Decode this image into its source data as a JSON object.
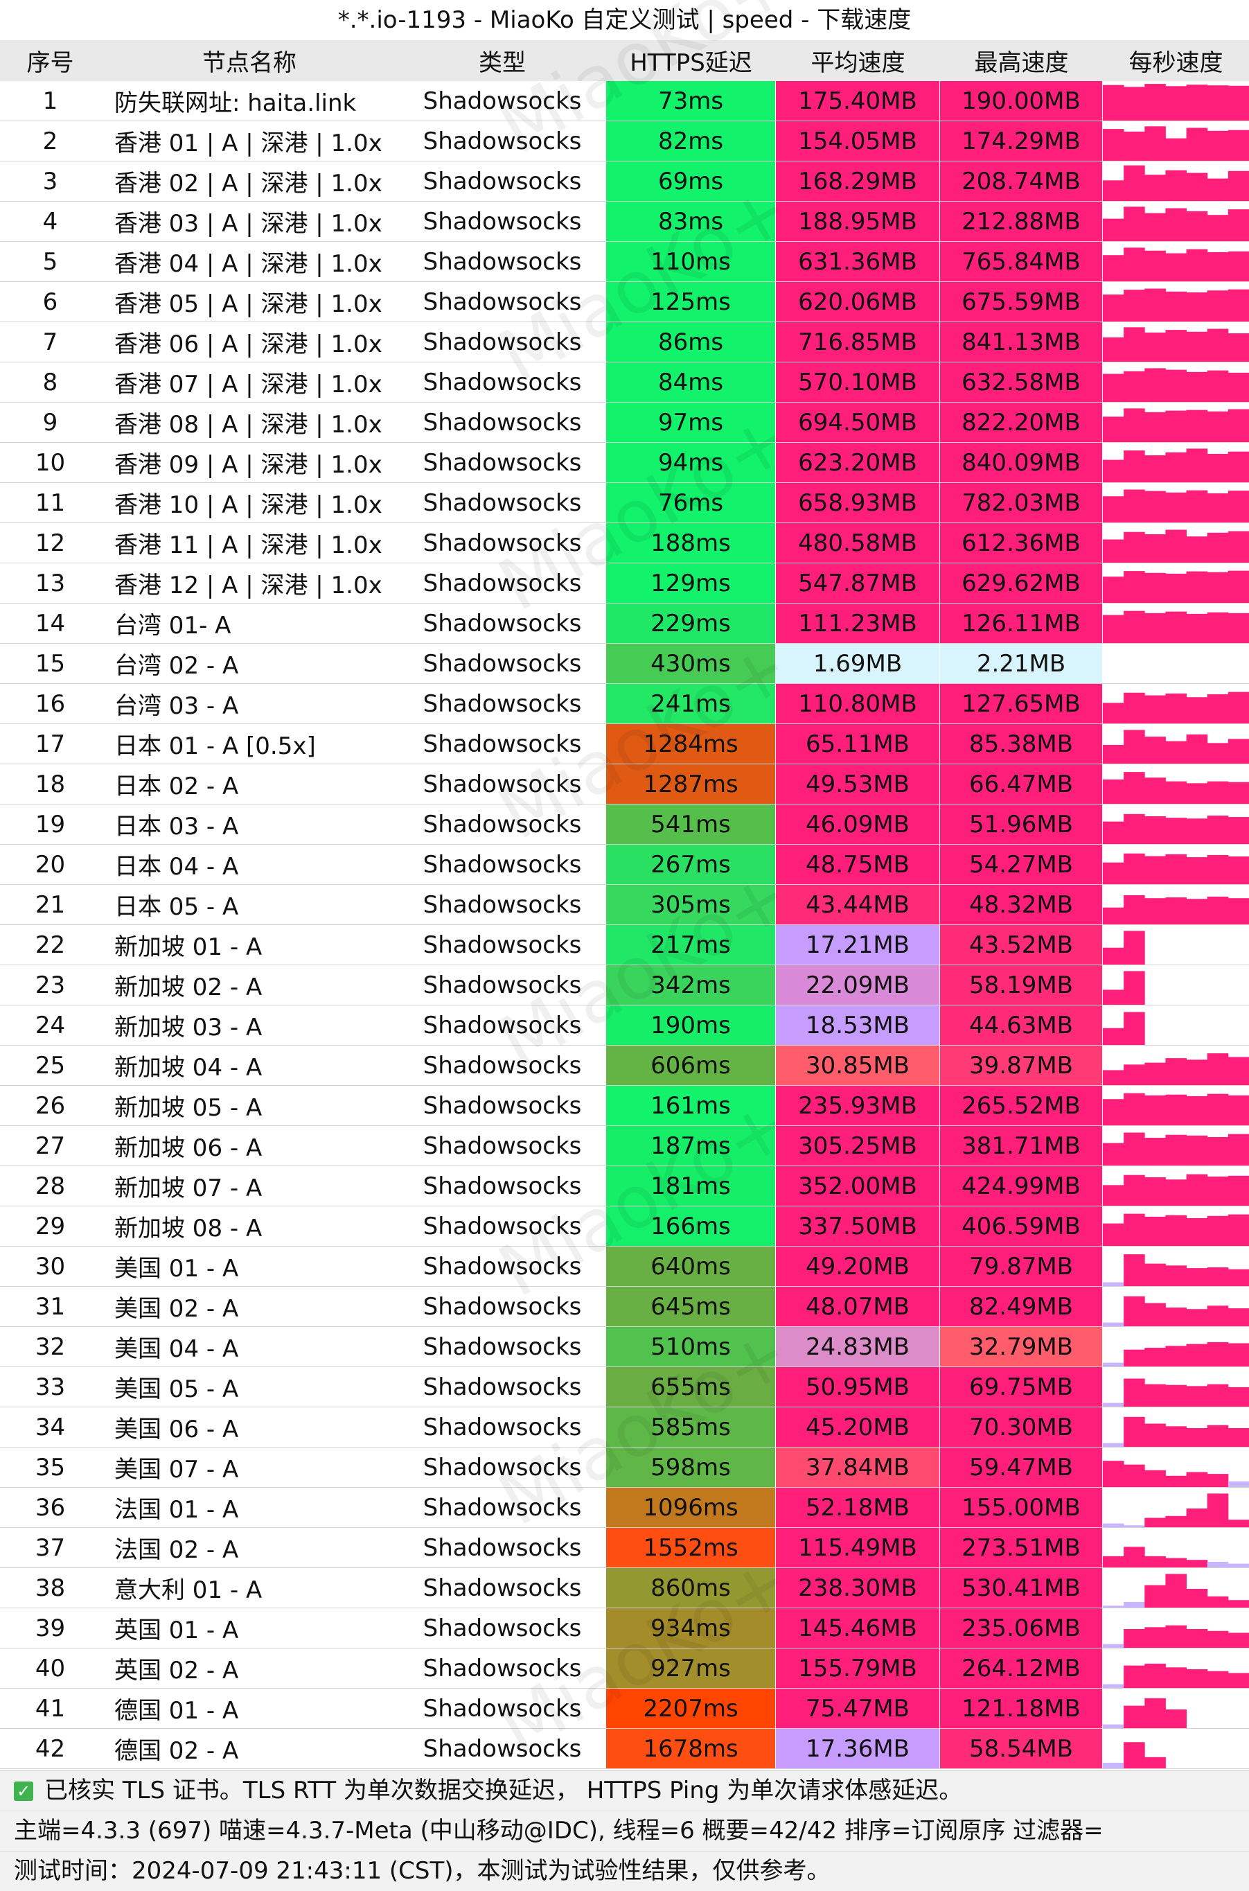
{
  "title": "*.*.io-1193 - MiaoKo 自定义测试 | speed - 下载速度",
  "watermark_text": "MiaoKo+",
  "columns": [
    "序号",
    "节点名称",
    "类型",
    "HTTPS延迟",
    "平均速度",
    "最高速度",
    "每秒速度"
  ],
  "rows": [
    {
      "no": "1",
      "name": "防失联网址: haita.link",
      "type": "Shadowsocks",
      "latency": "73ms",
      "latency_color": "#12f26a",
      "avg": "175.40MB",
      "avg_color": "#ff1f7a",
      "max": "190.00MB",
      "max_color": "#ff1f7a",
      "per_second": [
        0.95,
        0.9,
        0.98,
        0.92,
        0.96,
        0.94,
        0.93
      ]
    },
    {
      "no": "2",
      "name": "香港 01 | A | 深港 | 1.0x",
      "type": "Shadowsocks",
      "latency": "82ms",
      "latency_color": "#12f26a",
      "avg": "154.05MB",
      "avg_color": "#ff1f7a",
      "max": "174.29MB",
      "max_color": "#ff1f7a",
      "per_second": [
        0.85,
        0.78,
        0.92,
        0.6,
        0.88,
        0.8,
        0.82
      ]
    },
    {
      "no": "3",
      "name": "香港 02 | A | 深港 | 1.0x",
      "type": "Shadowsocks",
      "latency": "69ms",
      "latency_color": "#12f26a",
      "avg": "168.29MB",
      "avg_color": "#ff1f7a",
      "max": "208.74MB",
      "max_color": "#ff1f7a",
      "per_second": [
        0.55,
        0.95,
        0.7,
        0.82,
        0.75,
        0.6,
        0.8
      ]
    },
    {
      "no": "4",
      "name": "香港 03 | A | 深港 | 1.0x",
      "type": "Shadowsocks",
      "latency": "83ms",
      "latency_color": "#12f26a",
      "avg": "188.95MB",
      "avg_color": "#ff1f7a",
      "max": "212.88MB",
      "max_color": "#ff1f7a",
      "per_second": [
        0.6,
        0.92,
        0.75,
        0.88,
        0.8,
        0.7,
        0.85
      ]
    },
    {
      "no": "5",
      "name": "香港 04 | A | 深港 | 1.0x",
      "type": "Shadowsocks",
      "latency": "110ms",
      "latency_color": "#12f26a",
      "avg": "631.36MB",
      "avg_color": "#ff1f7a",
      "max": "765.84MB",
      "max_color": "#ff1f7a",
      "per_second": [
        0.7,
        0.9,
        0.82,
        0.75,
        0.86,
        0.78,
        0.8
      ]
    },
    {
      "no": "6",
      "name": "香港 05 | A | 深港 | 1.0x",
      "type": "Shadowsocks",
      "latency": "125ms",
      "latency_color": "#12f26a",
      "avg": "620.06MB",
      "avg_color": "#ff1f7a",
      "max": "675.59MB",
      "max_color": "#ff1f7a",
      "per_second": [
        0.72,
        0.85,
        0.88,
        0.8,
        0.78,
        0.83,
        0.86
      ]
    },
    {
      "no": "7",
      "name": "香港 06 | A | 深港 | 1.0x",
      "type": "Shadowsocks",
      "latency": "86ms",
      "latency_color": "#12f26a",
      "avg": "716.85MB",
      "avg_color": "#ff1f7a",
      "max": "841.13MB",
      "max_color": "#ff1f7a",
      "per_second": [
        0.65,
        0.92,
        0.78,
        0.85,
        0.8,
        0.88,
        0.76
      ]
    },
    {
      "no": "8",
      "name": "香港 07 | A | 深港 | 1.0x",
      "type": "Shadowsocks",
      "latency": "84ms",
      "latency_color": "#12f26a",
      "avg": "570.10MB",
      "avg_color": "#ff1f7a",
      "max": "632.58MB",
      "max_color": "#ff1f7a",
      "per_second": [
        0.75,
        0.82,
        0.9,
        0.86,
        0.8,
        0.84,
        0.78
      ]
    },
    {
      "no": "9",
      "name": "香港 08 | A | 深港 | 1.0x",
      "type": "Shadowsocks",
      "latency": "97ms",
      "latency_color": "#12f26a",
      "avg": "694.50MB",
      "avg_color": "#ff1f7a",
      "max": "822.20MB",
      "max_color": "#ff1f7a",
      "per_second": [
        0.68,
        0.9,
        0.8,
        0.84,
        0.86,
        0.82,
        0.88
      ]
    },
    {
      "no": "10",
      "name": "香港 09 | A | 深港 | 1.0x",
      "type": "Shadowsocks",
      "latency": "94ms",
      "latency_color": "#12f26a",
      "avg": "623.20MB",
      "avg_color": "#ff1f7a",
      "max": "840.09MB",
      "max_color": "#ff1f7a",
      "per_second": [
        0.6,
        0.85,
        0.72,
        0.8,
        0.9,
        0.76,
        0.82
      ]
    },
    {
      "no": "11",
      "name": "香港 10 | A | 深港 | 1.0x",
      "type": "Shadowsocks",
      "latency": "76ms",
      "latency_color": "#12f26a",
      "avg": "658.93MB",
      "avg_color": "#ff1f7a",
      "max": "782.03MB",
      "max_color": "#ff1f7a",
      "per_second": [
        0.7,
        0.88,
        0.84,
        0.8,
        0.86,
        0.78,
        0.85
      ]
    },
    {
      "no": "12",
      "name": "香港 11 | A | 深港 | 1.0x",
      "type": "Shadowsocks",
      "latency": "188ms",
      "latency_color": "#12f26a",
      "avg": "480.58MB",
      "avg_color": "#ff1f7a",
      "max": "612.36MB",
      "max_color": "#ff1f7a",
      "per_second": [
        0.62,
        0.82,
        0.76,
        0.88,
        0.7,
        0.8,
        0.84
      ]
    },
    {
      "no": "13",
      "name": "香港 12 | A | 深港 | 1.0x",
      "type": "Shadowsocks",
      "latency": "129ms",
      "latency_color": "#12f26a",
      "avg": "547.87MB",
      "avg_color": "#ff1f7a",
      "max": "629.62MB",
      "max_color": "#ff1f7a",
      "per_second": [
        0.7,
        0.85,
        0.8,
        0.78,
        0.84,
        0.82,
        0.86
      ]
    },
    {
      "no": "14",
      "name": "台湾 01- A",
      "type": "Shadowsocks",
      "latency": "229ms",
      "latency_color": "#1ee866",
      "avg": "111.23MB",
      "avg_color": "#ff1f7a",
      "max": "126.11MB",
      "max_color": "#ff1f7a",
      "per_second": [
        0.75,
        0.86,
        0.8,
        0.84,
        0.78,
        0.82,
        0.8
      ]
    },
    {
      "no": "15",
      "name": "台湾 02 - A",
      "type": "Shadowsocks",
      "latency": "430ms",
      "latency_color": "#46cc55",
      "avg": "1.69MB",
      "avg_color": "#d8f4fc",
      "max": "2.21MB",
      "max_color": "#d8f4fc",
      "per_second": [
        0,
        0,
        0,
        0,
        0,
        0,
        0
      ]
    },
    {
      "no": "16",
      "name": "台湾 03 - A",
      "type": "Shadowsocks",
      "latency": "241ms",
      "latency_color": "#22e866",
      "avg": "110.80MB",
      "avg_color": "#ff1f7a",
      "max": "127.65MB",
      "max_color": "#ff1f7a",
      "per_second": [
        0.55,
        0.82,
        0.75,
        0.8,
        0.7,
        0.78,
        0.84
      ]
    },
    {
      "no": "17",
      "name": "日本 01 - A [0.5x]",
      "type": "Shadowsocks",
      "latency": "1284ms",
      "latency_color": "#e05a14",
      "avg": "65.11MB",
      "avg_color": "#ff1f7a",
      "max": "85.38MB",
      "max_color": "#ff1f7a",
      "per_second": [
        0.5,
        0.9,
        0.72,
        0.6,
        0.78,
        0.55,
        0.66
      ]
    },
    {
      "no": "18",
      "name": "日本 02 - A",
      "type": "Shadowsocks",
      "latency": "1287ms",
      "latency_color": "#e05a14",
      "avg": "49.53MB",
      "avg_color": "#ff1f7a",
      "max": "66.47MB",
      "max_color": "#ff1f7a",
      "per_second": [
        0.65,
        0.85,
        0.7,
        0.6,
        0.55,
        0.6,
        0.58
      ]
    },
    {
      "no": "19",
      "name": "日本 03 - A",
      "type": "Shadowsocks",
      "latency": "541ms",
      "latency_color": "#56bf4c",
      "avg": "46.09MB",
      "avg_color": "#ff1f7a",
      "max": "51.96MB",
      "max_color": "#ff1f7a",
      "per_second": [
        0.6,
        0.8,
        0.74,
        0.7,
        0.68,
        0.76,
        0.72
      ]
    },
    {
      "no": "20",
      "name": "日本 04 - A",
      "type": "Shadowsocks",
      "latency": "267ms",
      "latency_color": "#2ae062",
      "avg": "48.75MB",
      "avg_color": "#ff1f7a",
      "max": "54.27MB",
      "max_color": "#ff1f7a",
      "per_second": [
        0.58,
        0.82,
        0.75,
        0.8,
        0.72,
        0.78,
        0.74
      ]
    },
    {
      "no": "21",
      "name": "日本 05 - A",
      "type": "Shadowsocks",
      "latency": "305ms",
      "latency_color": "#36d85e",
      "avg": "43.44MB",
      "avg_color": "#ff2a78",
      "max": "48.32MB",
      "max_color": "#ff1f7a",
      "per_second": [
        0.45,
        0.78,
        0.7,
        0.72,
        0.68,
        0.74,
        0.7
      ]
    },
    {
      "no": "22",
      "name": "新加坡 01 - A",
      "type": "Shadowsocks",
      "latency": "217ms",
      "latency_color": "#20e866",
      "avg": "17.21MB",
      "avg_color": "#c79cff",
      "max": "43.52MB",
      "max_color": "#ff2a78",
      "per_second": [
        0.45,
        0.9,
        0,
        0,
        0,
        0,
        0
      ]
    },
    {
      "no": "23",
      "name": "新加坡 02 - A",
      "type": "Shadowsocks",
      "latency": "342ms",
      "latency_color": "#3ad45c",
      "avg": "22.09MB",
      "avg_color": "#d88ad8",
      "max": "58.19MB",
      "max_color": "#ff2a78",
      "per_second": [
        0.4,
        0.9,
        0,
        0,
        0,
        0,
        0
      ]
    },
    {
      "no": "24",
      "name": "新加坡 03 - A",
      "type": "Shadowsocks",
      "latency": "190ms",
      "latency_color": "#16ee68",
      "avg": "18.53MB",
      "avg_color": "#c79cff",
      "max": "44.63MB",
      "max_color": "#ff2a78",
      "per_second": [
        0.45,
        0.88,
        0,
        0,
        0,
        0,
        0
      ]
    },
    {
      "no": "25",
      "name": "新加坡 04 - A",
      "type": "Shadowsocks",
      "latency": "606ms",
      "latency_color": "#64b445",
      "avg": "30.85MB",
      "avg_color": "#ff5c6c",
      "max": "39.87MB",
      "max_color": "#ff3a74",
      "per_second": [
        0.4,
        0.55,
        0.6,
        0.72,
        0.68,
        0.85,
        0.75
      ]
    },
    {
      "no": "26",
      "name": "新加坡 05 - A",
      "type": "Shadowsocks",
      "latency": "161ms",
      "latency_color": "#12f26a",
      "avg": "235.93MB",
      "avg_color": "#ff1f7a",
      "max": "265.52MB",
      "max_color": "#ff1f7a",
      "per_second": [
        0.7,
        0.86,
        0.8,
        0.82,
        0.78,
        0.84,
        0.8
      ]
    },
    {
      "no": "27",
      "name": "新加坡 06 - A",
      "type": "Shadowsocks",
      "latency": "187ms",
      "latency_color": "#16ee68",
      "avg": "305.25MB",
      "avg_color": "#ff1f7a",
      "max": "381.71MB",
      "max_color": "#ff1f7a",
      "per_second": [
        0.6,
        0.88,
        0.74,
        0.82,
        0.8,
        0.76,
        0.84
      ]
    },
    {
      "no": "28",
      "name": "新加坡 07 - A",
      "type": "Shadowsocks",
      "latency": "181ms",
      "latency_color": "#16ee68",
      "avg": "352.00MB",
      "avg_color": "#ff1f7a",
      "max": "424.99MB",
      "max_color": "#ff1f7a",
      "per_second": [
        0.55,
        0.82,
        0.76,
        0.7,
        0.84,
        0.78,
        0.8
      ]
    },
    {
      "no": "29",
      "name": "新加坡 08 - A",
      "type": "Shadowsocks",
      "latency": "166ms",
      "latency_color": "#14f06a",
      "avg": "337.50MB",
      "avg_color": "#ff1f7a",
      "max": "406.59MB",
      "max_color": "#ff1f7a",
      "per_second": [
        0.6,
        0.86,
        0.78,
        0.82,
        0.74,
        0.8,
        0.84
      ]
    },
    {
      "no": "30",
      "name": "美国 01 - A",
      "type": "Shadowsocks",
      "latency": "640ms",
      "latency_color": "#68b044",
      "avg": "49.20MB",
      "avg_color": "#ff1f7a",
      "max": "79.87MB",
      "max_color": "#ff1f7a",
      "per_second": [
        0.1,
        0.85,
        0.6,
        0.55,
        0.48,
        0.5,
        0.45
      ]
    },
    {
      "no": "31",
      "name": "美国 02 - A",
      "type": "Shadowsocks",
      "latency": "645ms",
      "latency_color": "#68b044",
      "avg": "48.07MB",
      "avg_color": "#ff1f7a",
      "max": "82.49MB",
      "max_color": "#ff1f7a",
      "per_second": [
        0.1,
        0.8,
        0.62,
        0.5,
        0.46,
        0.55,
        0.48
      ]
    },
    {
      "no": "32",
      "name": "美国 04 - A",
      "type": "Shadowsocks",
      "latency": "510ms",
      "latency_color": "#52c24e",
      "avg": "24.83MB",
      "avg_color": "#dc8cc8",
      "max": "32.79MB",
      "max_color": "#ff5c6c",
      "per_second": [
        0.1,
        0.45,
        0.5,
        0.55,
        0.6,
        0.65,
        0.62
      ]
    },
    {
      "no": "33",
      "name": "美国 05 - A",
      "type": "Shadowsocks",
      "latency": "655ms",
      "latency_color": "#6aae43",
      "avg": "50.95MB",
      "avg_color": "#ff1f7a",
      "max": "69.75MB",
      "max_color": "#ff1f7a",
      "per_second": [
        0.1,
        0.75,
        0.6,
        0.58,
        0.55,
        0.6,
        0.52
      ]
    },
    {
      "no": "34",
      "name": "美国 06 - A",
      "type": "Shadowsocks",
      "latency": "585ms",
      "latency_color": "#5eb848",
      "avg": "45.20MB",
      "avg_color": "#ff1f7a",
      "max": "70.30MB",
      "max_color": "#ff1f7a",
      "per_second": [
        0.1,
        0.8,
        0.62,
        0.55,
        0.5,
        0.58,
        0.5
      ]
    },
    {
      "no": "35",
      "name": "美国 07 - A",
      "type": "Shadowsocks",
      "latency": "598ms",
      "latency_color": "#60b647",
      "avg": "37.84MB",
      "avg_color": "#ff4a70",
      "max": "59.47MB",
      "max_color": "#ff1f7a",
      "per_second": [
        0.7,
        0.6,
        0.45,
        0.3,
        0.4,
        0.35,
        0.15
      ]
    },
    {
      "no": "36",
      "name": "法国 01 - A",
      "type": "Shadowsocks",
      "latency": "1096ms",
      "latency_color": "#c2781c",
      "avg": "52.18MB",
      "avg_color": "#ff1f7a",
      "max": "155.00MB",
      "max_color": "#ff1f7a",
      "per_second": [
        0.1,
        0.05,
        0.25,
        0.3,
        0.5,
        0.9,
        0.2
      ]
    },
    {
      "no": "37",
      "name": "法国 02 - A",
      "type": "Shadowsocks",
      "latency": "1552ms",
      "latency_color": "#ff4e12",
      "avg": "115.49MB",
      "avg_color": "#ff1f7a",
      "max": "273.51MB",
      "max_color": "#ff1f7a",
      "per_second": [
        0.3,
        0.55,
        0.3,
        0.25,
        0.2,
        0.15,
        0.1
      ]
    },
    {
      "no": "38",
      "name": "意大利 01 - A",
      "type": "Shadowsocks",
      "latency": "860ms",
      "latency_color": "#949830",
      "avg": "238.30MB",
      "avg_color": "#ff1f7a",
      "max": "530.41MB",
      "max_color": "#ff1f7a",
      "per_second": [
        0.05,
        0.15,
        0.6,
        0.9,
        0.5,
        0.3,
        0.2
      ]
    },
    {
      "no": "39",
      "name": "英国 01 - A",
      "type": "Shadowsocks",
      "latency": "934ms",
      "latency_color": "#a48c2a",
      "avg": "145.46MB",
      "avg_color": "#ff1f7a",
      "max": "235.06MB",
      "max_color": "#ff1f7a",
      "per_second": [
        0.1,
        0.5,
        0.55,
        0.6,
        0.5,
        0.45,
        0.4
      ]
    },
    {
      "no": "40",
      "name": "英国 02 - A",
      "type": "Shadowsocks",
      "latency": "927ms",
      "latency_color": "#a28e2a",
      "avg": "155.79MB",
      "avg_color": "#ff1f7a",
      "max": "264.12MB",
      "max_color": "#ff1f7a",
      "per_second": [
        0.1,
        0.6,
        0.65,
        0.55,
        0.5,
        0.45,
        0.4
      ]
    },
    {
      "no": "41",
      "name": "德国 01 - A",
      "type": "Shadowsocks",
      "latency": "2207ms",
      "latency_color": "#ff4500",
      "avg": "75.47MB",
      "avg_color": "#ff1f7a",
      "max": "121.18MB",
      "max_color": "#ff1f7a",
      "per_second": [
        0.1,
        0.6,
        0.8,
        0.5,
        0,
        0,
        0
      ]
    },
    {
      "no": "42",
      "name": "德国 02 - A",
      "type": "Shadowsocks",
      "latency": "1678ms",
      "latency_color": "#ff4e12",
      "avg": "17.36MB",
      "avg_color": "#c79cff",
      "max": "58.54MB",
      "max_color": "#ff2a78",
      "per_second": [
        0.15,
        0.7,
        0.3,
        0,
        0,
        0,
        0
      ]
    }
  ],
  "footer": {
    "line1": "已核实 TLS 证书。TLS RTT 为单次数据交换延迟， HTTPS Ping 为单次请求体感延迟。",
    "line2": "主端=4.3.3 (697) 喵速=4.3.7-Meta (中山移动@IDC), 线程=6 概要=42/42 排序=订阅原序 过滤器=",
    "line3": "测试时间：2024-07-09 21:43:11 (CST)，本测试为试验性结果，仅供参考。"
  },
  "colors": {
    "header_bg": "#e9e9e9",
    "per_second_bar": "#ff1f7a",
    "footer_check": "#3fb34f"
  }
}
